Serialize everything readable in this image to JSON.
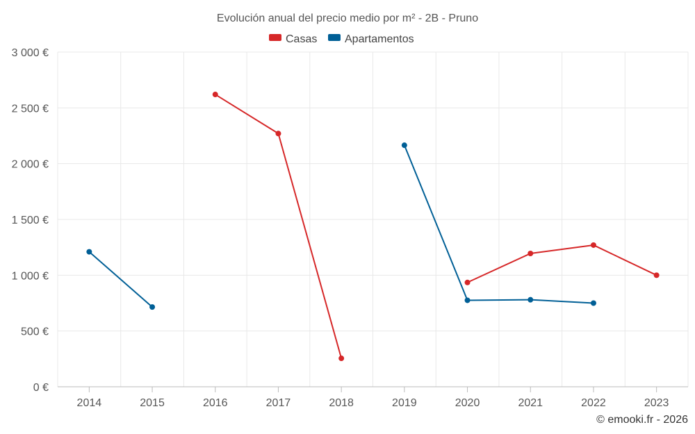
{
  "chart_data": {
    "type": "line",
    "title": "Evolución anual del precio medio por m² - 2B - Pruno",
    "categories": [
      "2014",
      "2015",
      "2016",
      "2017",
      "2018",
      "2019",
      "2020",
      "2021",
      "2022",
      "2023"
    ],
    "series": [
      {
        "name": "Casas",
        "color": "#d62728",
        "values": [
          null,
          null,
          2620,
          2270,
          255,
          null,
          935,
          1195,
          1270,
          1000
        ]
      },
      {
        "name": "Apartamentos",
        "color": "#005f96",
        "values": [
          1210,
          715,
          null,
          null,
          null,
          2165,
          775,
          780,
          750,
          null
        ]
      }
    ],
    "y_ticks": [
      "0 €",
      "500 €",
      "1 000 €",
      "1 500 €",
      "2 000 €",
      "2 500 €",
      "3 000 €"
    ],
    "ylim": [
      0,
      3000
    ],
    "xlabel": "",
    "ylabel": "",
    "legend_position": "top-center",
    "grid": true
  },
  "credit": "© emooki.fr - 2026"
}
